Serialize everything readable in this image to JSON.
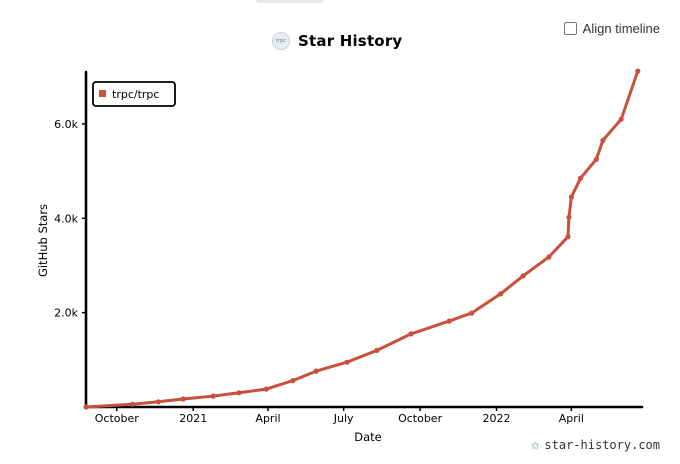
{
  "align_timeline": {
    "label": "Align timeline",
    "checked": false
  },
  "title": "Star History",
  "title_logo_text": "trpc",
  "watermark": "star-history.com",
  "chart_data": {
    "type": "line",
    "title": "Star History",
    "xlabel": "Date",
    "ylabel": "GitHub Stars",
    "x_type": "date",
    "xlim": [
      "2020-08-25",
      "2022-06-25"
    ],
    "ylim": [
      0,
      7100
    ],
    "xticks": [
      {
        "date": "2020-10-01",
        "label": "October"
      },
      {
        "date": "2021-01-01",
        "label": "2021"
      },
      {
        "date": "2021-04-01",
        "label": "April"
      },
      {
        "date": "2021-07-01",
        "label": "July"
      },
      {
        "date": "2021-10-01",
        "label": "October"
      },
      {
        "date": "2022-01-01",
        "label": "2022"
      },
      {
        "date": "2022-04-01",
        "label": "April"
      }
    ],
    "yticks": [
      {
        "value": 2000,
        "label": "2.0k"
      },
      {
        "value": 4000,
        "label": "4.0k"
      },
      {
        "value": 6000,
        "label": "6.0k"
      }
    ],
    "legend_position": "top-left",
    "grid": false,
    "color": "#c9503a",
    "series": [
      {
        "name": "trpc/trpc",
        "points": [
          {
            "x": "2020-08-25",
            "y": 0
          },
          {
            "x": "2020-10-20",
            "y": 60
          },
          {
            "x": "2020-11-20",
            "y": 110
          },
          {
            "x": "2020-12-20",
            "y": 170
          },
          {
            "x": "2021-01-25",
            "y": 230
          },
          {
            "x": "2021-02-25",
            "y": 300
          },
          {
            "x": "2021-03-30",
            "y": 380
          },
          {
            "x": "2021-05-01",
            "y": 560
          },
          {
            "x": "2021-05-29",
            "y": 760
          },
          {
            "x": "2021-07-05",
            "y": 950
          },
          {
            "x": "2021-08-10",
            "y": 1200
          },
          {
            "x": "2021-09-20",
            "y": 1550
          },
          {
            "x": "2021-11-05",
            "y": 1820
          },
          {
            "x": "2021-12-02",
            "y": 1990
          },
          {
            "x": "2022-01-06",
            "y": 2400
          },
          {
            "x": "2022-02-02",
            "y": 2780
          },
          {
            "x": "2022-03-05",
            "y": 3180
          },
          {
            "x": "2022-03-28",
            "y": 3610
          },
          {
            "x": "2022-03-29",
            "y": 4020
          },
          {
            "x": "2022-04-01",
            "y": 4450
          },
          {
            "x": "2022-04-12",
            "y": 4850
          },
          {
            "x": "2022-05-01",
            "y": 5250
          },
          {
            "x": "2022-05-09",
            "y": 5650
          },
          {
            "x": "2022-05-31",
            "y": 6100
          },
          {
            "x": "2022-06-20",
            "y": 7120
          }
        ]
      }
    ]
  }
}
